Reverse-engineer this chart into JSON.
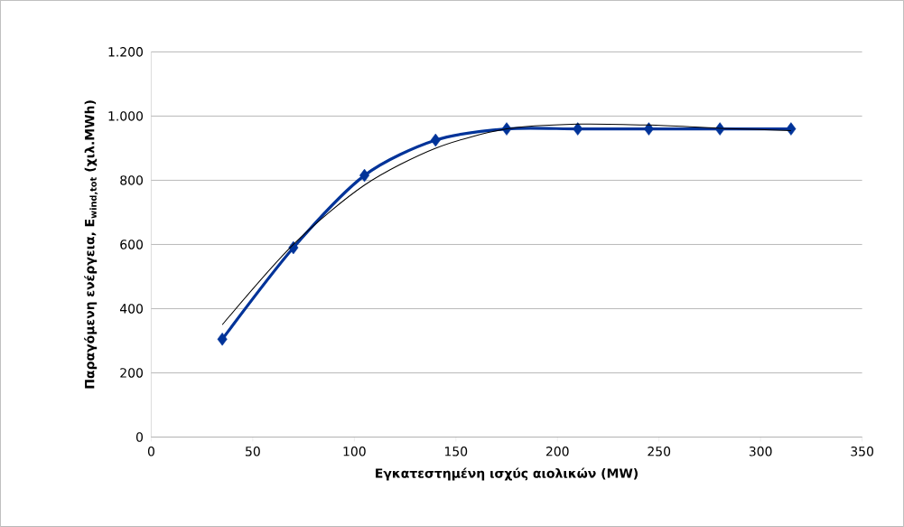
{
  "chart_data": {
    "type": "line",
    "xlabel": "Εγκατεστημένη ισχύς αιολικών (MW)",
    "ylabel": "Παραγόμενη ενέργεια, E$_{wind,tot}$ (χιλ.MWh)",
    "x": [
      35,
      70,
      105,
      140,
      175,
      210,
      245,
      280,
      315
    ],
    "series": [
      {
        "color": "#003399",
        "marker": "diamond",
        "line_style": "solid",
        "values": [
          305,
          590,
          815,
          925,
          960,
          960,
          960,
          960,
          960
        ]
      },
      {
        "color": "#000000",
        "marker": "none",
        "line_style": "solid",
        "values": [
          350,
          600,
          785,
          900,
          960,
          975,
          972,
          962,
          955
        ]
      }
    ],
    "xlim": [
      0,
      350
    ],
    "xticks": [
      0,
      50,
      100,
      150,
      200,
      250,
      300,
      350
    ],
    "ylim": [
      0,
      1200
    ],
    "yticks": [
      0,
      200,
      400,
      600,
      800,
      {
        "value": 1000,
        "label": "1.000"
      },
      {
        "value": 1200,
        "label": "1.200"
      }
    ],
    "grid": "y",
    "legend": false
  }
}
